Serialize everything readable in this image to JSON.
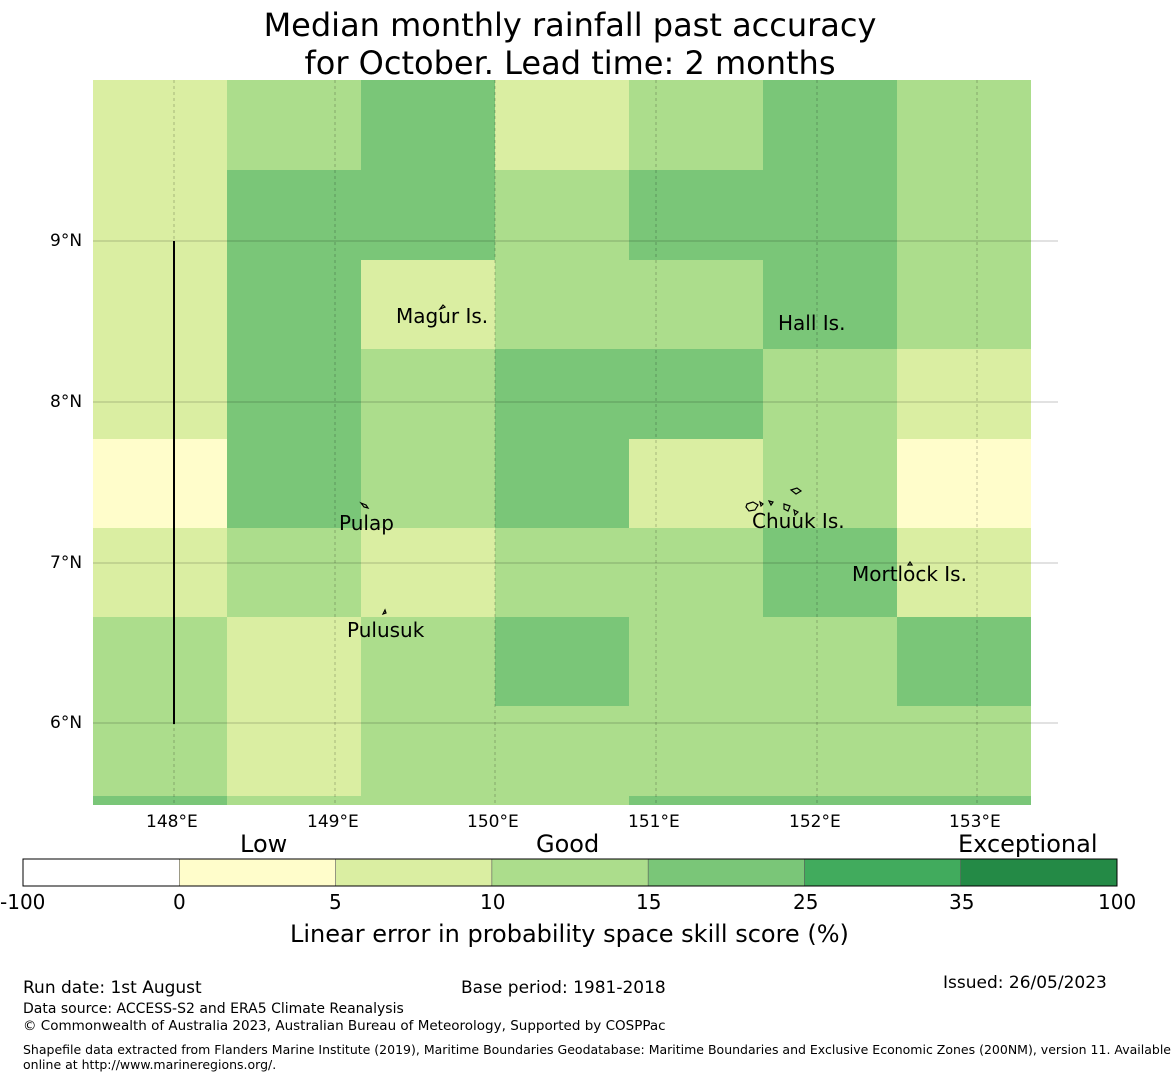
{
  "title": {
    "line1": "Median monthly rainfall past accuracy",
    "line2": "for October. Lead time: 2 months"
  },
  "map": {
    "lat_labels": [
      "9°N",
      "8°N",
      "7°N",
      "6°N"
    ],
    "lon_labels": [
      "148°E",
      "149°E",
      "150°E",
      "151°E",
      "152°E",
      "153°E"
    ],
    "place_labels": {
      "magur": "Magur Is.",
      "hall": "Hall Is.",
      "pulap": "Pulap",
      "chuuk": "Chuuk Is.",
      "mortlock": "Mortlock Is.",
      "pulusuk": "Pulusuk"
    },
    "category_colors": [
      "#ffffff",
      "#fffdcb",
      "#daeea2",
      "#acdd8c",
      "#7ac678",
      "#41ab5d",
      "#248a46"
    ],
    "grid_cells": [
      [
        2,
        3,
        4,
        2,
        3,
        4,
        3
      ],
      [
        2,
        4,
        4,
        3,
        4,
        4,
        3
      ],
      [
        2,
        4,
        2,
        3,
        3,
        4,
        3
      ],
      [
        2,
        4,
        3,
        4,
        4,
        3,
        2
      ],
      [
        1,
        4,
        3,
        4,
        2,
        3,
        1
      ],
      [
        2,
        3,
        2,
        3,
        3,
        4,
        2
      ],
      [
        3,
        2,
        3,
        4,
        3,
        3,
        4
      ],
      [
        3,
        2,
        3,
        3,
        3,
        3,
        3
      ],
      [
        4,
        3,
        3,
        3,
        4,
        4,
        4
      ]
    ]
  },
  "colorbar": {
    "category_labels": {
      "low": "Low",
      "good": "Good",
      "exceptional": "Exceptional"
    },
    "ticks": [
      "-100",
      "0",
      "5",
      "10",
      "15",
      "25",
      "35",
      "100"
    ],
    "colors": [
      "#ffffff",
      "#fffdcb",
      "#daeea2",
      "#acdd8c",
      "#7ac678",
      "#41ab5d",
      "#248a46"
    ],
    "title": "Linear error in probability space skill score (%)"
  },
  "footer": {
    "run_date": "Run date: 1st August",
    "base_period": "Base period: 1981-2018",
    "issued": "Issued: 26/05/2023",
    "data_source": "Data source: ACCESS-S2 and ERA5 Climate Reanalysis",
    "copyright": "© Commonwealth of Australia 2023, Australian Bureau of Meteorology, Supported by COSPPac",
    "shapefile_line1": "Shapefile data extracted from Flanders Marine Institute (2019), Maritime Boundaries Geodatabase: Maritime Boundaries and Exclusive Economic Zones (200NM), version 11. Available",
    "shapefile_line2": "online at http://www.marineregions.org/."
  }
}
